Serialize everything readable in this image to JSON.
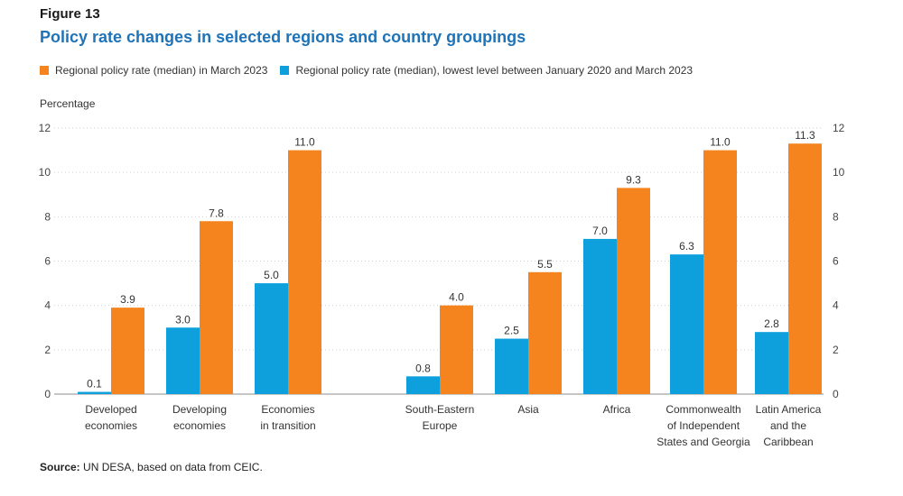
{
  "figure_label": "Figure 13",
  "title": "Policy rate changes in selected regions and country groupings",
  "ylabel": "Percentage",
  "source": {
    "prefix": "Source:",
    "text": " UN DESA, based on data from CEIC."
  },
  "colors": {
    "orange": "#f5841f",
    "blue": "#0ea0dc",
    "title": "#1f73b7",
    "grid": "#d0d0d0"
  },
  "chart_data": {
    "type": "bar",
    "ylim": [
      0,
      12
    ],
    "yticks": [
      0,
      2,
      4,
      6,
      8,
      10,
      12
    ],
    "grid": true,
    "legend_position": "top",
    "categories": [
      [
        "Developed",
        "economies"
      ],
      [
        "Developing",
        "economies"
      ],
      [
        "Economies",
        "in transition"
      ],
      [
        "South-Eastern",
        "Europe"
      ],
      [
        "Asia"
      ],
      [
        "Africa"
      ],
      [
        "Commonwealth",
        "of Independent",
        "States and Georgia"
      ],
      [
        "Latin America",
        "and the",
        "Caribbean"
      ]
    ],
    "series": [
      {
        "name": "Regional policy rate (median), lowest level between January 2020 and March 2023",
        "color": "#0ea0dc",
        "values": [
          0.1,
          3.0,
          5.0,
          0.8,
          2.5,
          7.0,
          6.3,
          2.8
        ],
        "labels": [
          "0.1",
          "3.0",
          "5.0",
          "0.8",
          "2.5",
          "7.0",
          "6.3",
          "2.8"
        ]
      },
      {
        "name": "Regional policy rate (median) in March 2023",
        "color": "#f5841f",
        "values": [
          3.9,
          7.8,
          11.0,
          4.0,
          5.5,
          9.3,
          11.0,
          11.3
        ],
        "labels": [
          "3.9",
          "7.8",
          "11.0",
          "4.0",
          "5.5",
          "9.3",
          "11.0",
          "11.3"
        ]
      }
    ]
  }
}
